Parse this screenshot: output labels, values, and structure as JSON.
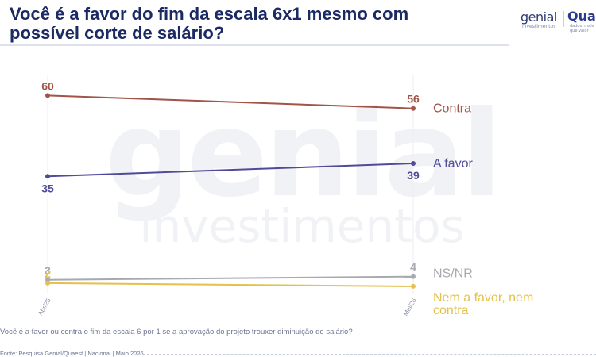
{
  "header": {
    "title": "Você é a favor do fim da escala 6x1 mesmo com possível corte de salário?",
    "logo_genial": "genial",
    "logo_genial_sub": "investimentos",
    "logo_quaest": "Quaest",
    "logo_quaest_sub": "dados, mais que valor"
  },
  "watermark": {
    "line1": "genial",
    "line2": "investimentos"
  },
  "footer": {
    "question": "Você é a favor ou contra o fim da escala 6 por 1 se a aprovação do projeto trouxer diminuição de salário?",
    "source": "Fonte: Pesquisa Genial/Quaest | Nacional | Maio 2026"
  },
  "chart_data": {
    "type": "line",
    "title": "Você é a favor do fim da escala 6x1 mesmo com possível corte de salário?",
    "x": [
      "Abr/25",
      "Mai/26"
    ],
    "ylim": [
      0,
      65
    ],
    "grid": false,
    "legend": "right-end labels",
    "series": [
      {
        "name": "Contra",
        "values": [
          60,
          56
        ],
        "color": "#a0544a",
        "labels": [
          "60",
          "56"
        ]
      },
      {
        "name": "A favor",
        "values": [
          35,
          39
        ],
        "color": "#4f4a9a",
        "labels": [
          "35",
          "39"
        ]
      },
      {
        "name": "NS/NR",
        "values": [
          3,
          4
        ],
        "color": "#a9aab0",
        "labels": [
          "3",
          "4"
        ]
      },
      {
        "name": "Nem a favor, nem contra",
        "values": [
          2,
          1
        ],
        "color": "#e3c14b",
        "labels": [
          "2",
          ""
        ]
      }
    ]
  }
}
